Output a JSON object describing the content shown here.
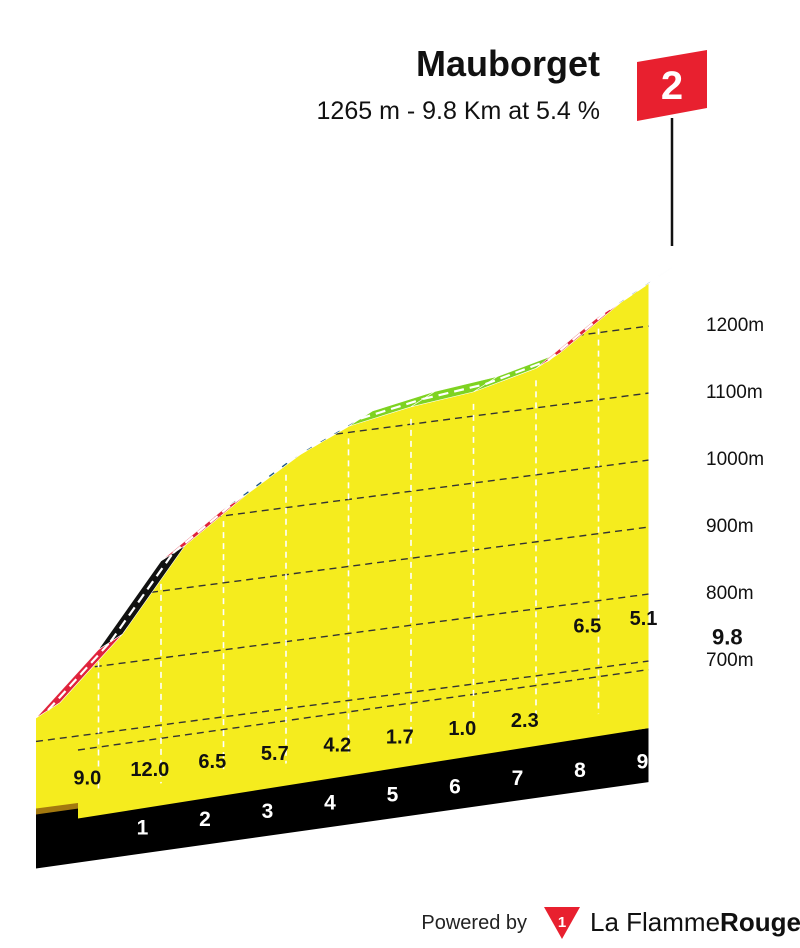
{
  "title": "Mauborget",
  "subtitle": "1265 m - 9.8 Km at 5.4 %",
  "category_badge": "2",
  "footer": {
    "powered_by": "Powered by",
    "brand_prefix": "La Flamme",
    "brand_suffix": "Rouge",
    "logo_digit": "1"
  },
  "colors": {
    "profile_fill": "#F5EC1E",
    "base_black": "#000000",
    "side_brown": "#A3790F",
    "flag_red": "#E8202F",
    "grade_red": "#E0233C",
    "grade_black": "#111111",
    "grade_blue": "#1E5A86",
    "grade_green": "#7ED321"
  },
  "chart_data": {
    "type": "area",
    "title": "Mauborget",
    "subtitle": "1265 m - 9.8 Km at 5.4 %",
    "xlabel": "",
    "ylabel": "",
    "x_unit": "km",
    "ylim": [
      600,
      1265
    ],
    "y_ticks": [
      700,
      800,
      900,
      1000,
      1100,
      1200
    ],
    "y_tick_labels": [
      "700m",
      "800m",
      "900m",
      "1000m",
      "1100m",
      "1200m"
    ],
    "km_markers": [
      "1",
      "2",
      "3",
      "4",
      "5",
      "6",
      "7",
      "8",
      "9"
    ],
    "total_distance_label": "9.8",
    "segments": [
      {
        "km_start": 0,
        "km_end": 1,
        "gradient": 9.0,
        "gradient_label": "9.0",
        "color": "red"
      },
      {
        "km_start": 1,
        "km_end": 2,
        "gradient": 12.0,
        "gradient_label": "12.0",
        "color": "black"
      },
      {
        "km_start": 2,
        "km_end": 3,
        "gradient": 6.5,
        "gradient_label": "6.5",
        "color": "red"
      },
      {
        "km_start": 3,
        "km_end": 4,
        "gradient": 5.7,
        "gradient_label": "5.7",
        "color": "blue"
      },
      {
        "km_start": 4,
        "km_end": 5,
        "gradient": 4.2,
        "gradient_label": "4.2",
        "color": "blue"
      },
      {
        "km_start": 5,
        "km_end": 6,
        "gradient": 1.7,
        "gradient_label": "1.7",
        "color": "green"
      },
      {
        "km_start": 6,
        "km_end": 7,
        "gradient": 1.0,
        "gradient_label": "1.0",
        "color": "green"
      },
      {
        "km_start": 7,
        "km_end": 8,
        "gradient": 2.3,
        "gradient_label": "2.3",
        "color": "green"
      },
      {
        "km_start": 8,
        "km_end": 9,
        "gradient": 6.5,
        "gradient_label": "6.5",
        "color": "red"
      },
      {
        "km_start": 9,
        "km_end": 9.8,
        "gradient": 5.1,
        "gradient_label": "5.1",
        "color": "blue"
      }
    ],
    "elevations": [
      {
        "km": 0,
        "alt": 735
      },
      {
        "km": 1,
        "alt": 825
      },
      {
        "km": 2,
        "alt": 945
      },
      {
        "km": 3,
        "alt": 1010
      },
      {
        "km": 4,
        "alt": 1067
      },
      {
        "km": 5,
        "alt": 1109
      },
      {
        "km": 6,
        "alt": 1126
      },
      {
        "km": 7,
        "alt": 1136
      },
      {
        "km": 8,
        "alt": 1159
      },
      {
        "km": 9,
        "alt": 1224
      },
      {
        "km": 9.8,
        "alt": 1265
      }
    ]
  }
}
